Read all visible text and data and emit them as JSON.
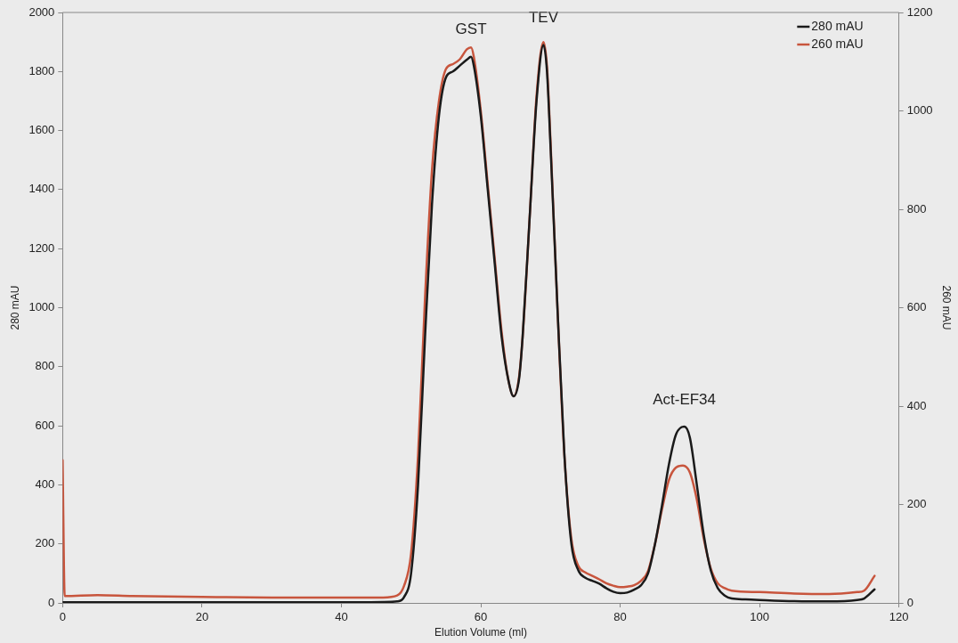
{
  "chart_data": {
    "type": "line",
    "xlabel": "Elution Volume (ml)",
    "ylabel": "280 mAU",
    "y2label": "260 mAU",
    "xlim": [
      0,
      120
    ],
    "xticks": [
      0,
      20,
      40,
      60,
      80,
      100,
      120
    ],
    "ylim": [
      0,
      2000
    ],
    "yticks": [
      0,
      200,
      400,
      600,
      800,
      1000,
      1200,
      1400,
      1600,
      1800,
      2000
    ],
    "y2lim": [
      0,
      1200
    ],
    "y2ticks": [
      0,
      200,
      400,
      600,
      800,
      1000,
      1200
    ],
    "grid": false,
    "legend": "top right",
    "marker": "none",
    "line_style": "solid",
    "annotations": [
      {
        "text": "GST",
        "x": 58.6,
        "y": 1850
      },
      {
        "text": "TEV",
        "x": 69,
        "y": 1890
      },
      {
        "text": "Act-EF34",
        "x": 89.2,
        "y": 597
      }
    ],
    "series": [
      {
        "name": "280 mAU",
        "color": "#1a1a1a",
        "x": [
          0,
          10,
          20,
          30,
          40,
          46,
          48,
          49,
          50,
          51,
          52,
          53,
          54,
          55,
          56,
          57,
          58,
          58.6,
          59,
          60,
          61,
          62,
          63,
          64,
          64.7,
          65.5,
          66,
          67,
          68,
          69,
          69.5,
          70,
          71,
          72,
          73,
          74,
          75,
          76,
          77,
          78,
          79,
          80,
          81,
          82,
          83,
          84,
          85,
          86,
          87,
          88,
          89.2,
          90,
          91,
          92,
          93,
          94,
          95,
          96,
          98,
          100,
          105,
          110,
          114,
          115,
          116.5
        ],
        "values": [
          2,
          2,
          2,
          2,
          2,
          3,
          5,
          20,
          100,
          400,
          900,
          1350,
          1650,
          1780,
          1800,
          1820,
          1840,
          1850,
          1820,
          1650,
          1400,
          1150,
          900,
          750,
          700,
          760,
          900,
          1300,
          1700,
          1890,
          1800,
          1550,
          1000,
          500,
          200,
          110,
          85,
          75,
          65,
          50,
          38,
          33,
          35,
          45,
          60,
          100,
          200,
          330,
          470,
          570,
          597,
          560,
          400,
          230,
          110,
          50,
          25,
          15,
          12,
          10,
          6,
          5,
          10,
          15,
          46
        ]
      },
      {
        "name": "260 mAU",
        "color": "#c8553d",
        "axis": "y2",
        "x": [
          0,
          0.3,
          5,
          10,
          20,
          30,
          40,
          46,
          48,
          49,
          50,
          51,
          52,
          53,
          54,
          55,
          56,
          57,
          58,
          58.6,
          59,
          60,
          61,
          62,
          63,
          64,
          64.7,
          65.5,
          66,
          67,
          68,
          69,
          69.5,
          70,
          71,
          72,
          73,
          74,
          75,
          76,
          77,
          78,
          79,
          80,
          81,
          82,
          83,
          84,
          85,
          86,
          87,
          88,
          89,
          90,
          91,
          92,
          93,
          94,
          95,
          96,
          100,
          105,
          110,
          114,
          115,
          116.5
        ],
        "values": [
          290,
          14,
          16,
          14,
          12,
          11,
          11,
          11,
          15,
          35,
          100,
          300,
          620,
          880,
          1020,
          1085,
          1095,
          1105,
          1125,
          1129,
          1110,
          1000,
          850,
          700,
          550,
          450,
          420,
          460,
          540,
          780,
          1030,
          1140,
          1090,
          940,
          600,
          300,
          130,
          75,
          62,
          55,
          48,
          40,
          35,
          32,
          33,
          36,
          45,
          65,
          120,
          190,
          250,
          275,
          279,
          265,
          210,
          130,
          70,
          40,
          30,
          25,
          22,
          19,
          18,
          22,
          25,
          55
        ]
      }
    ]
  }
}
